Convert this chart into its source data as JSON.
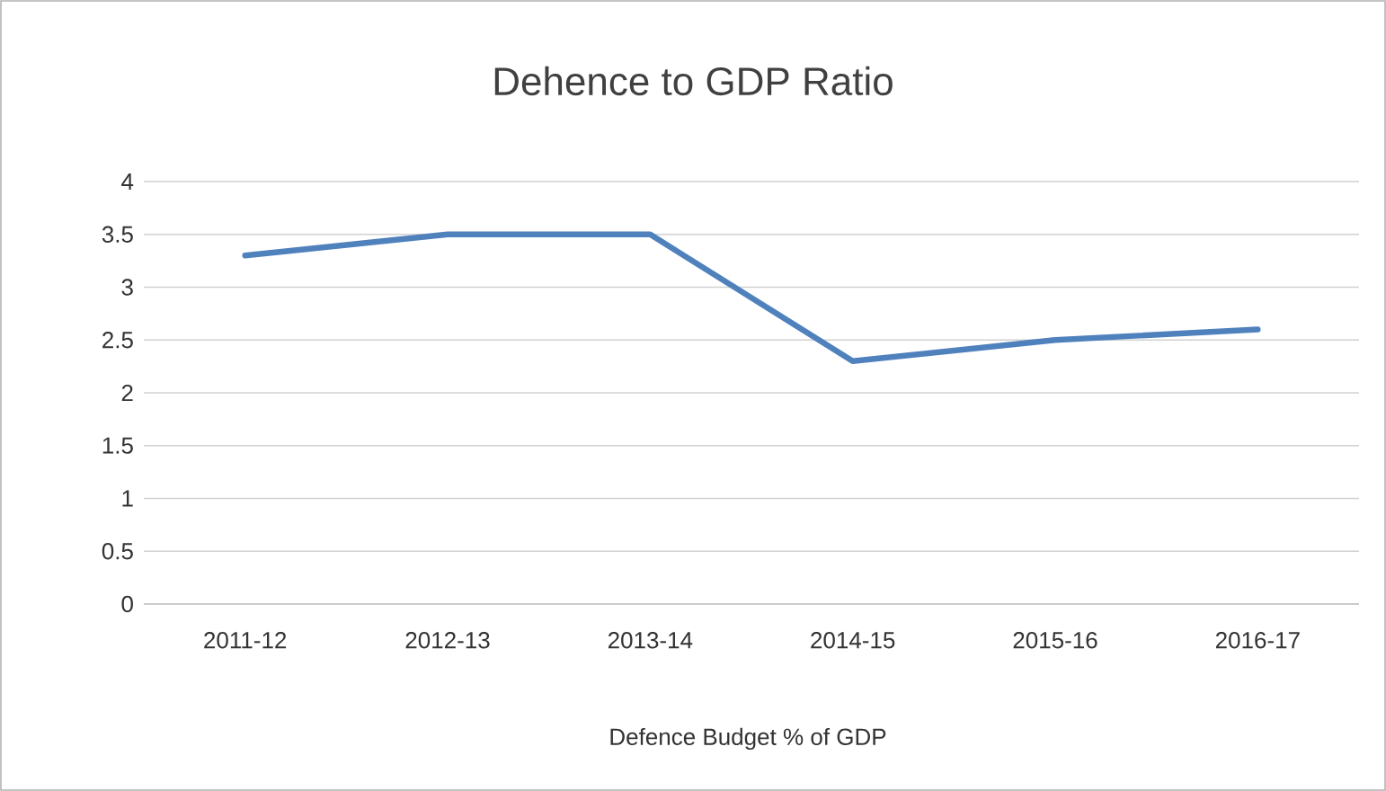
{
  "chart_data": {
    "type": "line",
    "title": "Dehence to GDP Ratio",
    "xlabel": "Defence Budget % of GDP",
    "categories": [
      "2011-12",
      "2012-13",
      "2013-14",
      "2014-15",
      "2015-16",
      "2016-17"
    ],
    "series": [
      {
        "color": "#4f81bd",
        "values": [
          3.3,
          3.5,
          3.5,
          2.3,
          2.5,
          2.6
        ]
      }
    ],
    "ylim": [
      0,
      4
    ],
    "yticks": [
      0,
      0.5,
      1,
      1.5,
      2,
      2.5,
      3,
      3.5,
      4
    ],
    "grid": "y"
  }
}
